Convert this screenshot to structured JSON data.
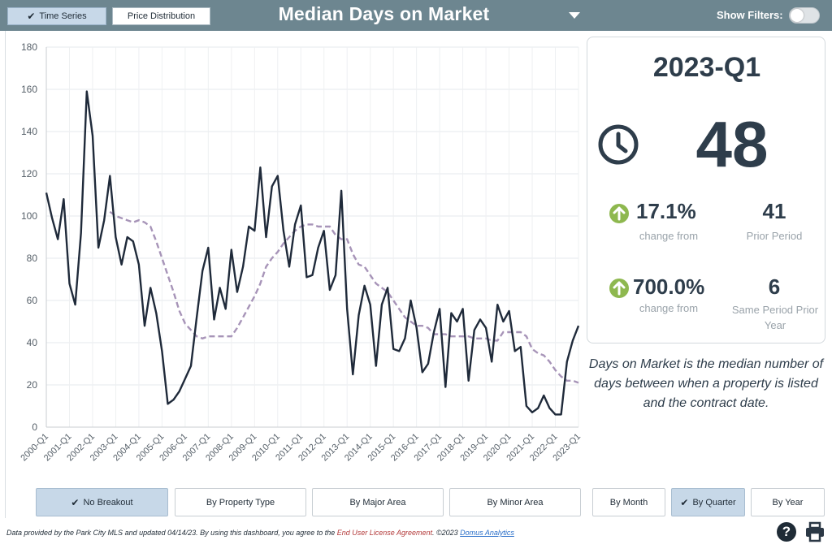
{
  "header": {
    "tabs": [
      {
        "label": "Time Series",
        "active": true
      },
      {
        "label": "Price Distribution",
        "active": false
      }
    ],
    "title": "Median Days on Market",
    "show_filters_label": "Show Filters:"
  },
  "summary": {
    "period": "2023-Q1",
    "value": "48",
    "comparisons": [
      {
        "pct": "17.1%",
        "label": "change from",
        "value": "41",
        "value_label": "Prior Period"
      },
      {
        "pct": "700.0%",
        "label": "change from",
        "value": "6",
        "value_label": "Same Period Prior Year"
      }
    ],
    "description": "Days on Market is the median number of days between when a property is listed and the contract date."
  },
  "breakout_buttons": [
    {
      "label": "No Breakout",
      "active": true
    },
    {
      "label": "By Property Type",
      "active": false
    },
    {
      "label": "By Major Area",
      "active": false
    },
    {
      "label": "By Minor Area",
      "active": false
    }
  ],
  "period_buttons": [
    {
      "label": "By Month",
      "active": false
    },
    {
      "label": "By Quarter",
      "active": true
    },
    {
      "label": "By Year",
      "active": false
    }
  ],
  "footer": {
    "prefix": "Data provided by the Park City MLS and updated 04/14/23.  By using this dashboard, you agree to the ",
    "eula": "End User License Agreement",
    "middle": ".  ©2023 ",
    "brand": "Domus Analytics"
  },
  "colors": {
    "header_bg": "#6d8690",
    "active_button": "#c7d8e8",
    "series_line": "#1f2a3a",
    "moving_average": "#a794b8",
    "up_arrow": "#8eb84f"
  },
  "icons": {
    "clock": "clock-icon",
    "up": "arrow-up-circle-icon",
    "help": "help-icon",
    "print": "print-icon",
    "check": "check-icon"
  },
  "chart_data": {
    "type": "line",
    "ylim": [
      0,
      180
    ],
    "yticks": [
      0,
      20,
      40,
      60,
      80,
      100,
      120,
      140,
      160,
      180
    ],
    "xtick_labels": [
      "2000-Q1",
      "2001-Q1",
      "2002-Q1",
      "2003-Q1",
      "2004-Q1",
      "2005-Q1",
      "2006-Q1",
      "2007-Q1",
      "2008-Q1",
      "2009-Q1",
      "2010-Q1",
      "2011-Q1",
      "2012-Q1",
      "2013-Q1",
      "2014-Q1",
      "2015-Q1",
      "2016-Q1",
      "2017-Q1",
      "2018-Q1",
      "2019-Q1",
      "2020-Q1",
      "2021-Q1",
      "2022-Q1",
      "2023-Q1"
    ],
    "grid": true,
    "series": [
      {
        "values": [
          111,
          99,
          89,
          108,
          68,
          58,
          92,
          159,
          138,
          85,
          98,
          119,
          90,
          77,
          90,
          88,
          77,
          48,
          66,
          54,
          36,
          11,
          13,
          17,
          23,
          29,
          52,
          74,
          85,
          51,
          66,
          56,
          84,
          64,
          76,
          95,
          93,
          123,
          90,
          114,
          119,
          93,
          76,
          96,
          105,
          71,
          72,
          85,
          93,
          65,
          72,
          112,
          56,
          25,
          53,
          67,
          58,
          29,
          58,
          66,
          37,
          36,
          42,
          60,
          47,
          26,
          30,
          45,
          56,
          19,
          54,
          50,
          56,
          22,
          46,
          51,
          47,
          31,
          58,
          50,
          55,
          36,
          38,
          10,
          7,
          9,
          15,
          9,
          6,
          6,
          31,
          41,
          48
        ]
      },
      {
        "values": [
          null,
          null,
          null,
          null,
          null,
          null,
          null,
          null,
          null,
          null,
          null,
          102,
          100,
          99,
          98,
          97,
          98,
          97,
          95,
          88,
          80,
          72,
          64,
          55,
          49,
          46,
          43,
          42,
          43,
          43,
          43,
          43,
          43,
          47,
          52,
          57,
          62,
          68,
          76,
          80,
          83,
          87,
          90,
          93,
          95,
          96,
          96,
          95,
          95,
          95,
          91,
          89,
          89,
          82,
          77,
          76,
          72,
          68,
          66,
          64,
          60,
          56,
          52,
          50,
          48,
          48,
          47,
          44,
          44,
          44,
          43,
          43,
          43,
          43,
          42,
          42,
          42,
          41,
          41,
          45,
          45,
          45,
          45,
          43,
          37,
          35,
          34,
          31,
          27,
          24,
          22,
          22,
          21
        ]
      }
    ]
  }
}
